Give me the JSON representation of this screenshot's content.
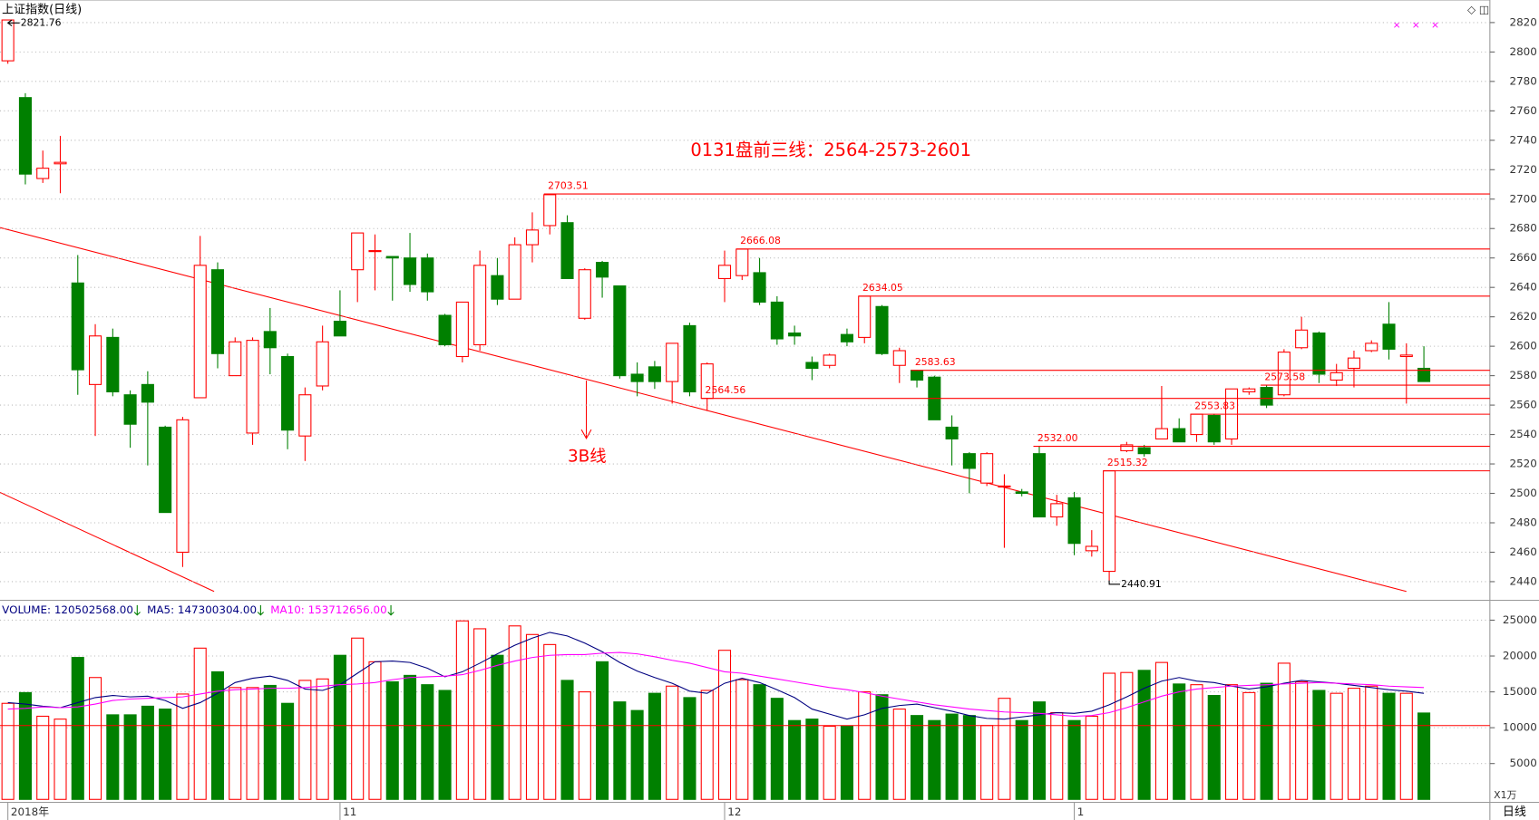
{
  "chart_data": {
    "type": "candlestick",
    "title": "上证指数(日线)",
    "categories": [
      "2018年",
      null,
      null,
      null,
      null,
      null,
      null,
      null,
      null,
      null,
      null,
      null,
      null,
      null,
      null,
      null,
      null,
      null,
      null,
      "11",
      null,
      null,
      null,
      null,
      null,
      null,
      null,
      null,
      null,
      null,
      null,
      null,
      null,
      null,
      null,
      null,
      null,
      null,
      null,
      null,
      null,
      "12",
      null,
      null,
      null,
      null,
      null,
      null,
      null,
      null,
      null,
      null,
      null,
      null,
      null,
      null,
      null,
      null,
      null,
      null,
      null,
      "1",
      null,
      null,
      null,
      null,
      null,
      null,
      null,
      null,
      null,
      null,
      null,
      null,
      null,
      null,
      null,
      null,
      null,
      null,
      null,
      null
    ],
    "open": [
      2794,
      2769,
      2714,
      2724,
      2643,
      2574,
      2606,
      2567,
      2574,
      2545,
      2460,
      2565,
      2652,
      2580,
      2541,
      2610,
      2593,
      2539,
      2573,
      2617,
      2652,
      2665,
      2661,
      2660,
      2660,
      2621,
      2593,
      2601,
      2648,
      2632,
      2669,
      2682,
      2684,
      2619,
      2657,
      2641,
      2581,
      2586,
      2576,
      2614,
      2564.56,
      2646,
      2648,
      2650,
      2630,
      2609,
      2589,
      2587,
      2608,
      2606,
      2627,
      2587,
      2583.63,
      2579,
      2545,
      2527,
      2507,
      2505,
      2501,
      2527,
      2484,
      2497,
      2461,
      2447,
      2529,
      2531,
      2537,
      2544,
      2540,
      2553,
      2537,
      2569,
      2572,
      2567,
      2599,
      2609,
      2577,
      2585,
      2597,
      2615,
      2593,
      2585
    ],
    "high": [
      2821.76,
      2772,
      2733,
      2743,
      2662,
      2615,
      2612,
      2570,
      2583,
      2546,
      2552,
      2675,
      2657,
      2606,
      2606,
      2626,
      2595,
      2572,
      2614,
      2638,
      2677,
      2676,
      2661,
      2677,
      2663,
      2622,
      2630,
      2665,
      2660,
      2674,
      2691,
      2703.51,
      2689,
      2653,
      2658,
      2641,
      2589,
      2590,
      2602,
      2616,
      2589,
      2665,
      2666.08,
      2660,
      2634,
      2614,
      2593,
      2595,
      2612,
      2634.05,
      2628,
      2599,
      2584,
      2580,
      2553,
      2528,
      2528,
      2513,
      2503,
      2532,
      2499,
      2501,
      2475,
      2515.32,
      2535,
      2533,
      2573,
      2551,
      2554,
      2554,
      2571,
      2572,
      2573.58,
      2598,
      2620,
      2610,
      2588,
      2597,
      2604,
      2630,
      2602,
      2600
    ],
    "low": [
      2792,
      2710,
      2711,
      2704,
      2567,
      2539,
      2566,
      2531,
      2519,
      2487,
      2450,
      2565,
      2585,
      2580,
      2533,
      2581,
      2530,
      2522,
      2570,
      2607,
      2630,
      2638,
      2631,
      2637,
      2631,
      2600,
      2589,
      2597,
      2628,
      2632,
      2657,
      2676,
      2646,
      2618,
      2633,
      2578,
      2566,
      2571,
      2561,
      2566,
      2556,
      2630,
      2645,
      2628,
      2601,
      2601,
      2577,
      2585,
      2600,
      2602,
      2594,
      2575,
      2572,
      2550,
      2519,
      2500,
      2505,
      2463,
      2498,
      2484,
      2478,
      2458,
      2457,
      2440.91,
      2528,
      2525,
      2537,
      2535,
      2535,
      2533,
      2533,
      2567,
      2558,
      2566,
      2598,
      2575,
      2573,
      2572,
      2596,
      2591,
      2561,
      2576
    ],
    "close": [
      2821.76,
      2717,
      2721,
      2725,
      2584,
      2607,
      2569,
      2547,
      2562,
      2487,
      2550,
      2655,
      2595,
      2603,
      2604,
      2599,
      2543,
      2567,
      2603,
      2607,
      2677,
      2665,
      2660,
      2642,
      2637,
      2601,
      2630,
      2655,
      2632,
      2669,
      2679,
      2703,
      2646,
      2652,
      2647,
      2580,
      2576,
      2576,
      2602,
      2569,
      2588,
      2655,
      2666,
      2630,
      2605,
      2607,
      2585,
      2594,
      2603,
      2634,
      2595,
      2597,
      2577,
      2550,
      2537,
      2517,
      2527,
      2505,
      2500,
      2484,
      2493,
      2466,
      2464,
      2515.32,
      2533,
      2527,
      2544,
      2535,
      2553.83,
      2535,
      2571,
      2571,
      2560,
      2596,
      2611,
      2581,
      2582,
      2592,
      2602,
      2598,
      2594,
      2576
    ],
    "up_color": "#ff0000",
    "down_color": "#008000",
    "ylim": [
      2434,
      2832
    ],
    "yticks": [
      2440,
      2460,
      2480,
      2500,
      2520,
      2540,
      2560,
      2580,
      2600,
      2620,
      2640,
      2660,
      2680,
      2700,
      2720,
      2740,
      2760,
      2780,
      2800,
      2820
    ],
    "grid": true,
    "max_label": 2821.76,
    "min_label": 2440.91,
    "levels": [
      2703.51,
      2666.08,
      2634.05,
      2583.63,
      2564.56,
      {
        "value": 2532,
        "label": "2532.00"
      },
      2515.32,
      2553.83,
      2573.58
    ],
    "annotations": [
      "0131盘前三线：2564-2573-2601",
      "3B线"
    ],
    "toolbar": "◇ ◫",
    "markers": "× × ×",
    "volume": [
      13400,
      14900,
      11600,
      11200,
      19800,
      17000,
      11800,
      11800,
      13000,
      12600,
      14700,
      21100,
      17800,
      15600,
      15600,
      15900,
      13400,
      16600,
      16800,
      20100,
      22500,
      19200,
      16400,
      17300,
      16000,
      15200,
      24900,
      23800,
      20100,
      24200,
      23000,
      21600,
      16600,
      15000,
      19200,
      13600,
      12400,
      14800,
      15800,
      14200,
      15200,
      20800,
      16700,
      16000,
      14100,
      11000,
      11200,
      10200,
      10200,
      15000,
      14600,
      12600,
      11700,
      11000,
      11900,
      11700,
      10300,
      14100,
      11000,
      13600,
      12100,
      11000,
      11600,
      17600,
      17700,
      18000,
      19100,
      16100,
      16000,
      14500,
      16000,
      14900,
      16200,
      19000,
      16400,
      15200,
      14800,
      15500,
      15800,
      14800,
      14800,
      12050
    ],
    "volume_ylim": [
      0,
      27500
    ],
    "volume_yticks": [
      5000,
      10000,
      15000,
      20000,
      25000
    ],
    "volume_unit": "X1万",
    "volume_ref": 10300,
    "volume_legend": [
      "VOLUME: 120502568.00",
      "MA5: 147300304.00",
      "MA10: 153712656.00"
    ],
    "ma_series": [
      {
        "color": "#000080",
        "values": [
          13500,
          13300,
          13000,
          12800,
          13500,
          14200,
          14500,
          14300,
          14400,
          13800,
          12700,
          13500,
          14800,
          16300,
          16900,
          17200,
          16600,
          15400,
          15200,
          16000,
          17600,
          19200,
          19300,
          19100,
          18300,
          17100,
          17800,
          19000,
          20300,
          21500,
          22500,
          23300,
          22800,
          21800,
          20600,
          19100,
          17900,
          17000,
          16200,
          15100,
          14800,
          16200,
          16900,
          16300,
          15300,
          14200,
          12600,
          11900,
          11200,
          11800,
          12700,
          13100,
          13300,
          12800,
          12300,
          11700,
          11300,
          11200,
          11500,
          11800,
          12100,
          12000,
          12300,
          13200,
          14300,
          15500,
          16500,
          17000,
          16500,
          16300,
          15800,
          15400,
          15700,
          16200,
          16600,
          16400,
          16200,
          15900,
          15600,
          15300,
          15100,
          14800
        ]
      },
      {
        "color": "#ff00ff",
        "values": [
          12600,
          12700,
          12900,
          12800,
          12900,
          13300,
          13800,
          14000,
          14100,
          14200,
          14300,
          14700,
          15100,
          15300,
          15400,
          15500,
          15500,
          15600,
          15800,
          16000,
          16100,
          16300,
          16700,
          17000,
          17100,
          17200,
          17400,
          18000,
          18700,
          19300,
          19800,
          20100,
          20200,
          20200,
          20400,
          20500,
          20300,
          19900,
          19400,
          19000,
          18400,
          17800,
          17600,
          17200,
          16800,
          16400,
          16000,
          15600,
          15300,
          14900,
          14400,
          14000,
          13600,
          13200,
          12900,
          12600,
          12400,
          12200,
          12100,
          12000,
          11800,
          11600,
          11700,
          12100,
          12800,
          13600,
          14400,
          15000,
          15400,
          15600,
          15800,
          15900,
          16000,
          16100,
          16200,
          16300,
          16200,
          16100,
          16000,
          15800,
          15700,
          15600
        ]
      }
    ],
    "period": "日线"
  }
}
